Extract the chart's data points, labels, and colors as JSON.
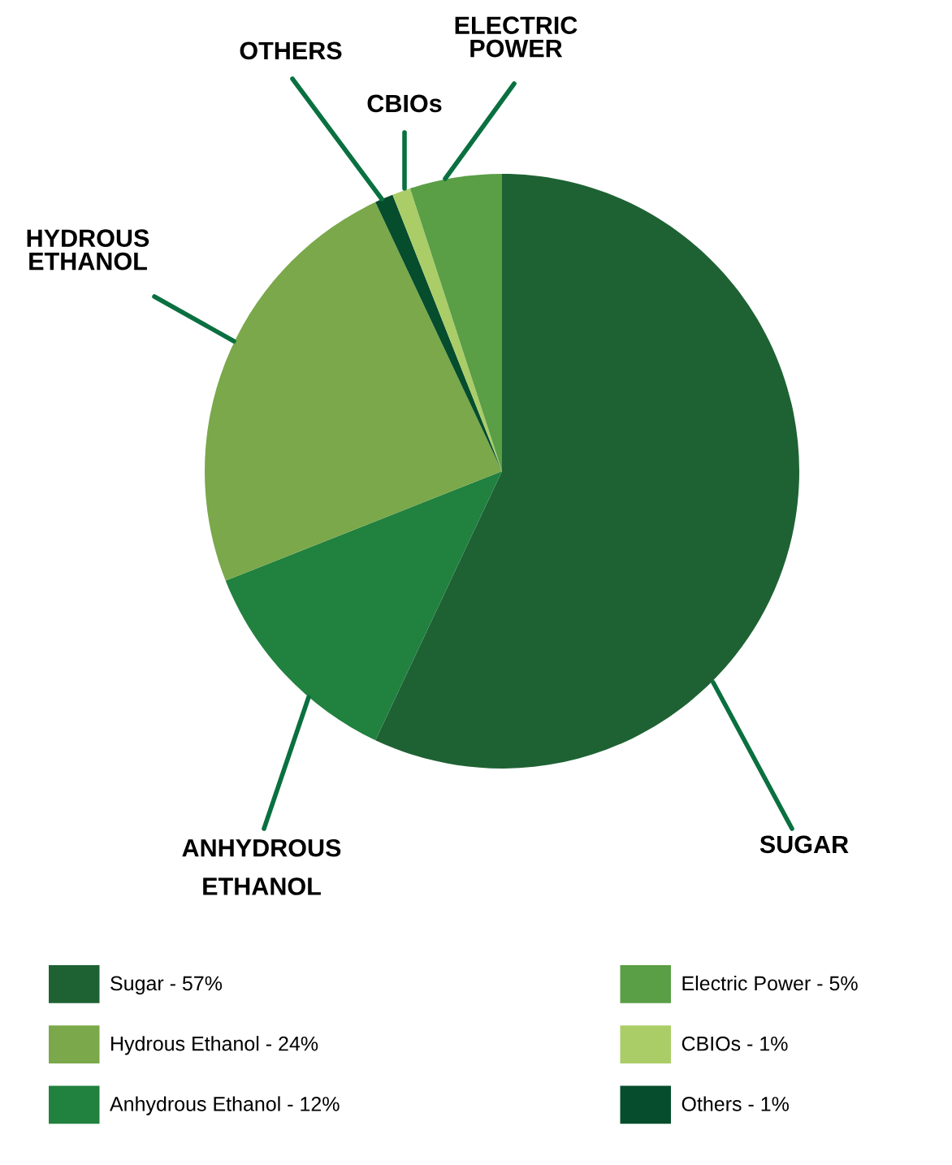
{
  "chart_data": {
    "type": "pie",
    "categories": [
      "Sugar - 57%",
      "Anhydrous Ethanol - 12%",
      "Hydrous Ethanol - 24%",
      "Others - 1%",
      "CBIOs - 1%",
      "Electric Power - 5%"
    ],
    "values": [
      57,
      12,
      24,
      1,
      1,
      5
    ],
    "colors": [
      "#1e6234",
      "#21813f",
      "#7aa84a",
      "#054d2c",
      "#aacd68",
      "#5a9e46"
    ],
    "value_labels": [
      "SUGAR",
      "ANHYDROUS\nETHANOL",
      "HYDROUS\nETHANOL",
      "OTHERS",
      "CBIOs",
      "ELECTRIC\nPOWER"
    ],
    "legend": "bottom"
  }
}
